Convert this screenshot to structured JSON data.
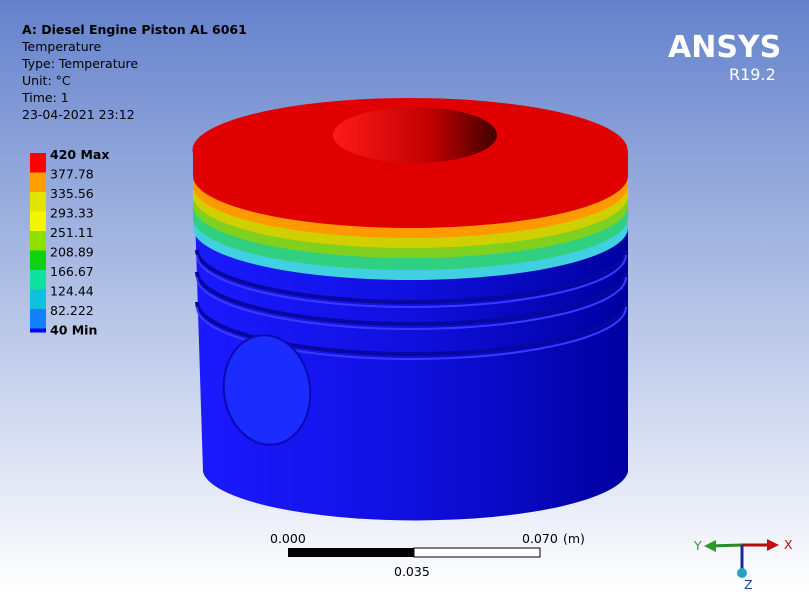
{
  "header": {
    "title": "A: Diesel Engine  Piston AL 6061",
    "lines": [
      "Temperature",
      "Type: Temperature",
      "Unit: °C",
      "Time: 1",
      "23-04-2021 23:12"
    ]
  },
  "legend": {
    "labels": [
      "420 Max",
      "377.78",
      "335.56",
      "293.33",
      "251.11",
      "208.89",
      "166.67",
      "124.44",
      "82.222",
      "40 Min"
    ]
  },
  "logo": {
    "name": "ANSYS",
    "version": "R19.2"
  },
  "scale_bar": {
    "start": "0.000",
    "end": "0.070",
    "unit": "(m)",
    "mid": "0.035"
  },
  "triad": {
    "x": "X",
    "y": "Y",
    "z": "Z"
  }
}
